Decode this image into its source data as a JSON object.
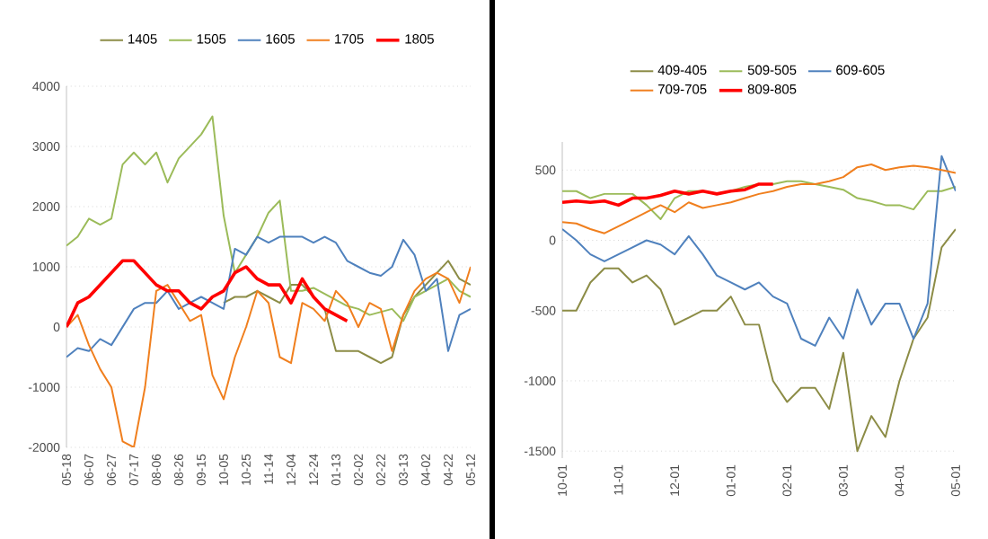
{
  "chart_data": [
    {
      "type": "line",
      "categories": [
        "05-18",
        null,
        "06-07",
        null,
        "06-27",
        null,
        "07-17",
        null,
        "08-06",
        null,
        "08-26",
        null,
        "09-15",
        null,
        "10-05",
        null,
        "10-25",
        null,
        "11-14",
        null,
        "12-04",
        null,
        "12-24",
        null,
        "01-13",
        null,
        "02-02",
        null,
        "02-22",
        null,
        "03-13",
        null,
        "04-02",
        null,
        "04-22",
        null,
        "05-12"
      ],
      "ylim": [
        -2000,
        4000
      ],
      "yticks": [
        -2000,
        -1000,
        0,
        1000,
        2000,
        3000,
        4000
      ],
      "grid": "y",
      "legend": "top",
      "marker": "none",
      "series": [
        {
          "name": "1405",
          "color": "#8c8c46",
          "values": [
            null,
            null,
            null,
            null,
            null,
            null,
            null,
            null,
            null,
            null,
            null,
            null,
            null,
            null,
            400,
            500,
            500,
            600,
            500,
            400,
            700,
            700,
            500,
            300,
            -400,
            -400,
            -400,
            -500,
            -600,
            -500,
            200,
            500,
            700,
            900,
            1100,
            800,
            700
          ]
        },
        {
          "name": "1505",
          "color": "#9bbb59",
          "values": [
            1350,
            1500,
            1800,
            1700,
            1800,
            2700,
            2900,
            2700,
            2900,
            2400,
            2800,
            3000,
            3200,
            3500,
            1850,
            900,
            1200,
            1500,
            1900,
            2100,
            600,
            600,
            650,
            550,
            450,
            350,
            300,
            200,
            250,
            300,
            100,
            500,
            600,
            700,
            800,
            600,
            500
          ]
        },
        {
          "name": "1605",
          "color": "#4f81bd",
          "values": [
            -500,
            -350,
            -400,
            -200,
            -300,
            0,
            300,
            400,
            400,
            600,
            300,
            400,
            500,
            400,
            300,
            1300,
            1200,
            1500,
            1400,
            1500,
            1500,
            1500,
            1400,
            1500,
            1400,
            1100,
            1000,
            900,
            850,
            1000,
            1450,
            1200,
            600,
            800,
            -400,
            200,
            300
          ]
        },
        {
          "name": "1705",
          "color": "#f07f1e",
          "values": [
            0,
            200,
            -300,
            -700,
            -1000,
            -1900,
            -2000,
            -1000,
            600,
            700,
            400,
            100,
            200,
            -800,
            -1200,
            -500,
            0,
            600,
            400,
            -500,
            -600,
            400,
            300,
            100,
            600,
            400,
            0,
            400,
            300,
            -400,
            200,
            600,
            800,
            900,
            800,
            400,
            1000
          ]
        },
        {
          "name": "1805",
          "color": "#ff0000",
          "values": [
            0,
            400,
            500,
            700,
            900,
            1100,
            1100,
            900,
            700,
            600,
            600,
            400,
            300,
            500,
            600,
            900,
            1000,
            800,
            700,
            700,
            400,
            800,
            500,
            300,
            200,
            100,
            null,
            null,
            null,
            null,
            null,
            null,
            null,
            null,
            null,
            null,
            null
          ]
        }
      ]
    },
    {
      "type": "line",
      "categories": [
        "10-01",
        null,
        null,
        null,
        "11-01",
        null,
        null,
        null,
        "12-01",
        null,
        null,
        null,
        "01-01",
        null,
        null,
        null,
        "02-01",
        null,
        null,
        null,
        "03-01",
        null,
        null,
        null,
        "04-01",
        null,
        null,
        null,
        "05-01"
      ],
      "ylim": [
        -1550,
        700
      ],
      "yticks": [
        -1500,
        -1000,
        -500,
        0,
        500
      ],
      "grid": "y",
      "legend": "top",
      "marker": "none",
      "series": [
        {
          "name": "409-405",
          "color": "#8c8c46",
          "values": [
            -500,
            -500,
            -300,
            -200,
            -200,
            -300,
            -250,
            -350,
            -600,
            -550,
            -500,
            -500,
            -400,
            -600,
            -600,
            -1000,
            -1150,
            -1050,
            -1050,
            -1200,
            -800,
            -1500,
            -1250,
            -1400,
            -1000,
            -700,
            -550,
            -50,
            80
          ]
        },
        {
          "name": "509-505",
          "color": "#9bbb59",
          "values": [
            350,
            350,
            300,
            330,
            330,
            330,
            250,
            150,
            300,
            350,
            350,
            null,
            350,
            380,
            400,
            400,
            420,
            420,
            400,
            380,
            360,
            300,
            280,
            250,
            250,
            220,
            350,
            350,
            380
          ]
        },
        {
          "name": "609-605",
          "color": "#4f81bd",
          "values": [
            80,
            0,
            -100,
            -150,
            -100,
            -50,
            0,
            -30,
            -100,
            30,
            -100,
            -250,
            -300,
            -350,
            -300,
            -400,
            -450,
            -700,
            -750,
            -550,
            -700,
            -350,
            -600,
            -450,
            -450,
            -700,
            -450,
            600,
            350
          ]
        },
        {
          "name": "709-705",
          "color": "#f07f1e",
          "values": [
            130,
            120,
            80,
            50,
            100,
            150,
            200,
            250,
            200,
            270,
            230,
            250,
            270,
            300,
            330,
            350,
            380,
            400,
            400,
            420,
            450,
            520,
            540,
            500,
            520,
            530,
            520,
            500,
            480
          ]
        },
        {
          "name": "809-805",
          "color": "#ff0000",
          "values": [
            270,
            280,
            270,
            280,
            250,
            300,
            300,
            320,
            350,
            330,
            350,
            330,
            350,
            360,
            400,
            400,
            null,
            null,
            null,
            null,
            null,
            null,
            null,
            null,
            null,
            null,
            null,
            null,
            null
          ]
        }
      ]
    }
  ]
}
